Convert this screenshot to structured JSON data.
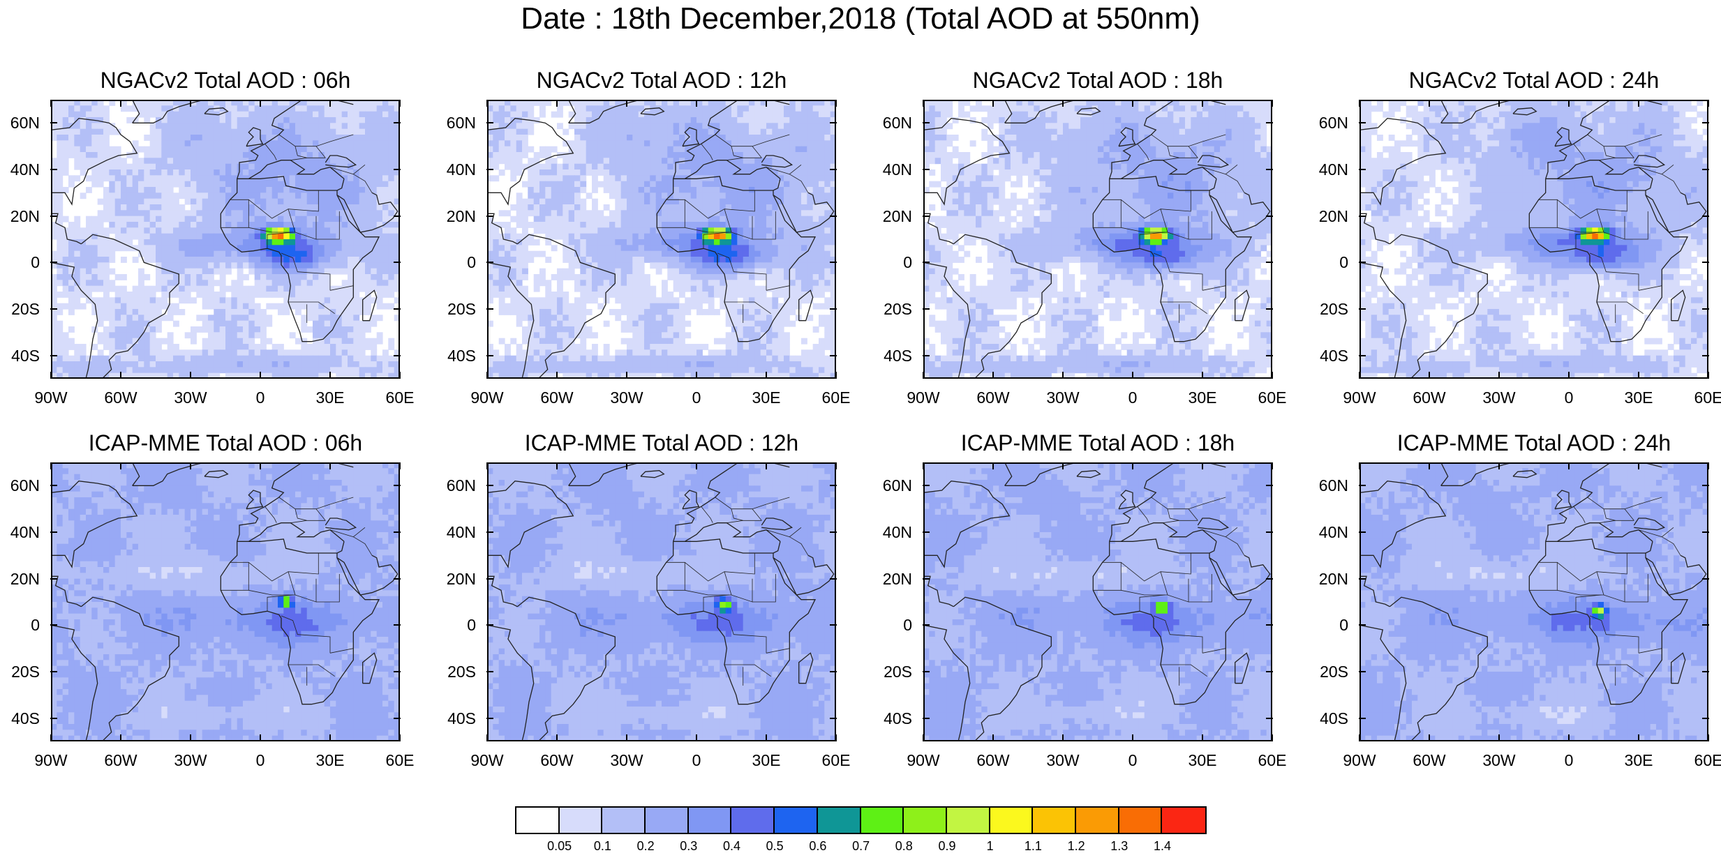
{
  "title": "Date : 18th December,2018 (Total AOD at 550nm)",
  "lat_labels": [
    "60N",
    "40N",
    "20N",
    "0",
    "20S",
    "40S"
  ],
  "lon_labels": [
    "90W",
    "60W",
    "30W",
    "0",
    "30E",
    "60E"
  ],
  "panels": [
    {
      "title": "NGACv2 Total AOD : 06h",
      "model": "NGACv2",
      "lead": "06h"
    },
    {
      "title": "NGACv2 Total AOD : 12h",
      "model": "NGACv2",
      "lead": "12h"
    },
    {
      "title": "NGACv2 Total AOD : 18h",
      "model": "NGACv2",
      "lead": "18h"
    },
    {
      "title": "NGACv2 Total AOD : 24h",
      "model": "NGACv2",
      "lead": "24h"
    },
    {
      "title": "ICAP-MME Total AOD : 06h",
      "model": "ICAP-MME",
      "lead": "06h"
    },
    {
      "title": "ICAP-MME Total AOD : 12h",
      "model": "ICAP-MME",
      "lead": "12h"
    },
    {
      "title": "ICAP-MME Total AOD : 18h",
      "model": "ICAP-MME",
      "lead": "18h"
    },
    {
      "title": "ICAP-MME Total AOD : 24h",
      "model": "ICAP-MME",
      "lead": "24h"
    }
  ],
  "colorbar": {
    "colors": [
      "#ffffff",
      "#d7dcfb",
      "#b3bff7",
      "#98a9f5",
      "#8097f3",
      "#5f6cec",
      "#1e64f0",
      "#0f9696",
      "#5ef015",
      "#8ef01a",
      "#c2f542",
      "#fbf81e",
      "#fbc305",
      "#fa9b05",
      "#f96d05",
      "#fb2613"
    ],
    "labels": [
      "0.05",
      "0.1",
      "0.2",
      "0.3",
      "0.4",
      "0.5",
      "0.6",
      "0.7",
      "0.8",
      "0.9",
      "1",
      "1.1",
      "1.2",
      "1.3",
      "1.4"
    ]
  }
}
